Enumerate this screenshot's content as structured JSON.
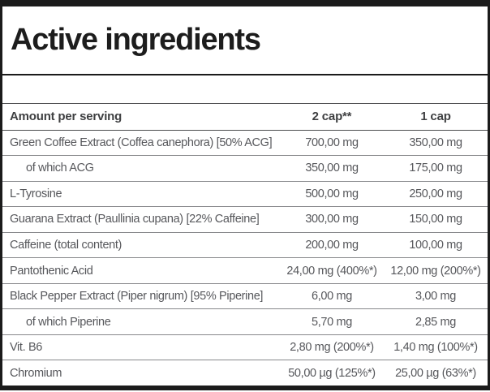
{
  "title": "Active ingredients",
  "colors": {
    "border_black": "#1b1b1b",
    "title_text": "#1d1d1d",
    "header_text": "#3e3f41",
    "body_text": "#56575b",
    "row_separator": "#87888b",
    "background": "#ffffff"
  },
  "table": {
    "header": {
      "label": "Amount per serving",
      "col2": "2 cap**",
      "col3": "1 cap"
    },
    "rows": [
      {
        "label": "Green Coffee Extract (Coffea canephora) [50% ACG]",
        "col2": "700,00 mg",
        "col3": "350,00 mg"
      },
      {
        "label": "of which ACG",
        "col2": "350,00 mg",
        "col3": "175,00 mg"
      },
      {
        "label": "L-Tyrosine",
        "col2": "500,00 mg",
        "col3": "250,00 mg"
      },
      {
        "label": "Guarana Extract (Paullinia cupana) [22% Caffeine]",
        "col2": "300,00 mg",
        "col3": "150,00 mg"
      },
      {
        "label": "Caffeine (total content)",
        "col2": "200,00 mg",
        "col3": "100,00 mg"
      },
      {
        "label": "Pantothenic Acid",
        "col2": "24,00 mg (400%*)",
        "col3": "12,00 mg (200%*)"
      },
      {
        "label": "Black Pepper Extract (Piper nigrum) [95% Piperine]",
        "col2": "6,00 mg",
        "col3": "3,00 mg"
      },
      {
        "label": "of which Piperine",
        "col2": "5,70 mg",
        "col3": "2,85 mg"
      },
      {
        "label": "Vit. B6",
        "col2": "2,80 mg (200%*)",
        "col3": "1,40 mg (100%*)"
      },
      {
        "label": "Chromium",
        "col2": "50,00 µg (125%*)",
        "col3": "25,00 µg (63%*)"
      }
    ]
  }
}
